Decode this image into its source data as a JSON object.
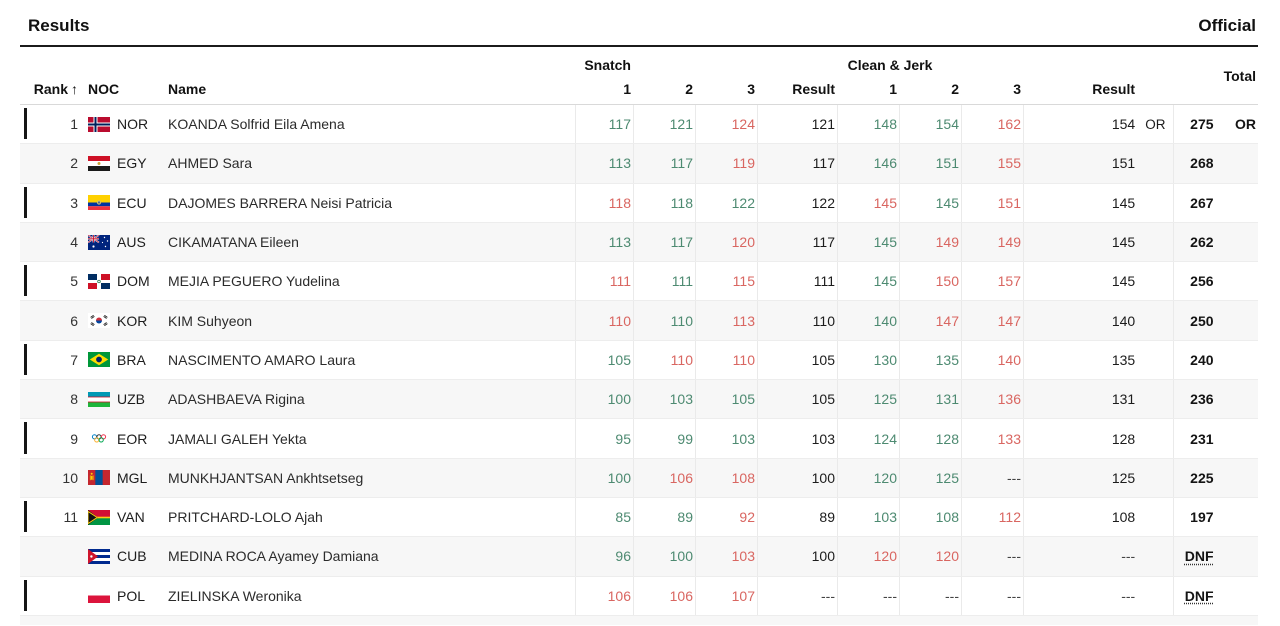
{
  "page": {
    "title": "Results",
    "status": "Official"
  },
  "colors": {
    "good": "#4d8a71",
    "fail": "#d96661",
    "neutral": "#1c1c1c",
    "dash": "#444444"
  },
  "table": {
    "headers": {
      "rank": "Rank",
      "sort_arrow": "↑",
      "noc": "NOC",
      "name": "Name",
      "snatch": "Snatch",
      "clean_jerk": "Clean & Jerk",
      "total": "Total",
      "attempt1": "1",
      "attempt2": "2",
      "attempt3": "3",
      "result": "Result"
    },
    "rows": [
      {
        "rank": "1",
        "noc": "NOR",
        "name": "KOANDA Solfrid Eila Amena",
        "snatch": {
          "attempts": [
            {
              "v": "117",
              "ok": true
            },
            {
              "v": "121",
              "ok": true
            },
            {
              "v": "124",
              "ok": false
            }
          ],
          "result": "121"
        },
        "cj": {
          "attempts": [
            {
              "v": "148",
              "ok": true
            },
            {
              "v": "154",
              "ok": true
            },
            {
              "v": "162",
              "ok": false
            }
          ],
          "result": "154",
          "record": "OR"
        },
        "total": {
          "value": "275",
          "record": "OR",
          "dnf": false
        }
      },
      {
        "rank": "2",
        "noc": "EGY",
        "name": "AHMED Sara",
        "snatch": {
          "attempts": [
            {
              "v": "113",
              "ok": true
            },
            {
              "v": "117",
              "ok": true
            },
            {
              "v": "119",
              "ok": false
            }
          ],
          "result": "117"
        },
        "cj": {
          "attempts": [
            {
              "v": "146",
              "ok": true
            },
            {
              "v": "151",
              "ok": true
            },
            {
              "v": "155",
              "ok": false
            }
          ],
          "result": "151",
          "record": ""
        },
        "total": {
          "value": "268",
          "record": "",
          "dnf": false
        }
      },
      {
        "rank": "3",
        "noc": "ECU",
        "name": "DAJOMES BARRERA Neisi Patricia",
        "snatch": {
          "attempts": [
            {
              "v": "118",
              "ok": false
            },
            {
              "v": "118",
              "ok": true
            },
            {
              "v": "122",
              "ok": true
            }
          ],
          "result": "122"
        },
        "cj": {
          "attempts": [
            {
              "v": "145",
              "ok": false
            },
            {
              "v": "145",
              "ok": true
            },
            {
              "v": "151",
              "ok": false
            }
          ],
          "result": "145",
          "record": ""
        },
        "total": {
          "value": "267",
          "record": "",
          "dnf": false
        }
      },
      {
        "rank": "4",
        "noc": "AUS",
        "name": "CIKAMATANA Eileen",
        "snatch": {
          "attempts": [
            {
              "v": "113",
              "ok": true
            },
            {
              "v": "117",
              "ok": true
            },
            {
              "v": "120",
              "ok": false
            }
          ],
          "result": "117"
        },
        "cj": {
          "attempts": [
            {
              "v": "145",
              "ok": true
            },
            {
              "v": "149",
              "ok": false
            },
            {
              "v": "149",
              "ok": false
            }
          ],
          "result": "145",
          "record": ""
        },
        "total": {
          "value": "262",
          "record": "",
          "dnf": false
        }
      },
      {
        "rank": "5",
        "noc": "DOM",
        "name": "MEJIA PEGUERO Yudelina",
        "snatch": {
          "attempts": [
            {
              "v": "111",
              "ok": false
            },
            {
              "v": "111",
              "ok": true
            },
            {
              "v": "115",
              "ok": false
            }
          ],
          "result": "111"
        },
        "cj": {
          "attempts": [
            {
              "v": "145",
              "ok": true
            },
            {
              "v": "150",
              "ok": false
            },
            {
              "v": "157",
              "ok": false
            }
          ],
          "result": "145",
          "record": ""
        },
        "total": {
          "value": "256",
          "record": "",
          "dnf": false
        }
      },
      {
        "rank": "6",
        "noc": "KOR",
        "name": "KIM Suhyeon",
        "snatch": {
          "attempts": [
            {
              "v": "110",
              "ok": false
            },
            {
              "v": "110",
              "ok": true
            },
            {
              "v": "113",
              "ok": false
            }
          ],
          "result": "110"
        },
        "cj": {
          "attempts": [
            {
              "v": "140",
              "ok": true
            },
            {
              "v": "147",
              "ok": false
            },
            {
              "v": "147",
              "ok": false
            }
          ],
          "result": "140",
          "record": ""
        },
        "total": {
          "value": "250",
          "record": "",
          "dnf": false
        }
      },
      {
        "rank": "7",
        "noc": "BRA",
        "name": "NASCIMENTO AMARO Laura",
        "snatch": {
          "attempts": [
            {
              "v": "105",
              "ok": true
            },
            {
              "v": "110",
              "ok": false
            },
            {
              "v": "110",
              "ok": false
            }
          ],
          "result": "105"
        },
        "cj": {
          "attempts": [
            {
              "v": "130",
              "ok": true
            },
            {
              "v": "135",
              "ok": true
            },
            {
              "v": "140",
              "ok": false
            }
          ],
          "result": "135",
          "record": ""
        },
        "total": {
          "value": "240",
          "record": "",
          "dnf": false
        }
      },
      {
        "rank": "8",
        "noc": "UZB",
        "name": "ADASHBAEVA Rigina",
        "snatch": {
          "attempts": [
            {
              "v": "100",
              "ok": true
            },
            {
              "v": "103",
              "ok": true
            },
            {
              "v": "105",
              "ok": true
            }
          ],
          "result": "105"
        },
        "cj": {
          "attempts": [
            {
              "v": "125",
              "ok": true
            },
            {
              "v": "131",
              "ok": true
            },
            {
              "v": "136",
              "ok": false
            }
          ],
          "result": "131",
          "record": ""
        },
        "total": {
          "value": "236",
          "record": "",
          "dnf": false
        }
      },
      {
        "rank": "9",
        "noc": "EOR",
        "name": "JAMALI GALEH Yekta",
        "snatch": {
          "attempts": [
            {
              "v": "95",
              "ok": true
            },
            {
              "v": "99",
              "ok": true
            },
            {
              "v": "103",
              "ok": true
            }
          ],
          "result": "103"
        },
        "cj": {
          "attempts": [
            {
              "v": "124",
              "ok": true
            },
            {
              "v": "128",
              "ok": true
            },
            {
              "v": "133",
              "ok": false
            }
          ],
          "result": "128",
          "record": ""
        },
        "total": {
          "value": "231",
          "record": "",
          "dnf": false
        }
      },
      {
        "rank": "10",
        "noc": "MGL",
        "name": "MUNKHJANTSAN Ankhtsetseg",
        "snatch": {
          "attempts": [
            {
              "v": "100",
              "ok": true
            },
            {
              "v": "106",
              "ok": false
            },
            {
              "v": "108",
              "ok": false
            }
          ],
          "result": "100"
        },
        "cj": {
          "attempts": [
            {
              "v": "120",
              "ok": true
            },
            {
              "v": "125",
              "ok": true
            },
            {
              "v": "---"
            }
          ],
          "result": "125",
          "record": ""
        },
        "total": {
          "value": "225",
          "record": "",
          "dnf": false
        }
      },
      {
        "rank": "11",
        "noc": "VAN",
        "name": "PRITCHARD-LOLO Ajah",
        "snatch": {
          "attempts": [
            {
              "v": "85",
              "ok": true
            },
            {
              "v": "89",
              "ok": true
            },
            {
              "v": "92",
              "ok": false
            }
          ],
          "result": "89"
        },
        "cj": {
          "attempts": [
            {
              "v": "103",
              "ok": true
            },
            {
              "v": "108",
              "ok": true
            },
            {
              "v": "112",
              "ok": false
            }
          ],
          "result": "108",
          "record": ""
        },
        "total": {
          "value": "197",
          "record": "",
          "dnf": false
        }
      },
      {
        "rank": "",
        "noc": "CUB",
        "name": "MEDINA ROCA Ayamey Damiana",
        "snatch": {
          "attempts": [
            {
              "v": "96",
              "ok": true
            },
            {
              "v": "100",
              "ok": true
            },
            {
              "v": "103",
              "ok": false
            }
          ],
          "result": "100"
        },
        "cj": {
          "attempts": [
            {
              "v": "120",
              "ok": false
            },
            {
              "v": "120",
              "ok": false
            },
            {
              "v": "---"
            }
          ],
          "result": "---",
          "record": ""
        },
        "total": {
          "value": "DNF",
          "record": "",
          "dnf": true
        }
      },
      {
        "rank": "",
        "noc": "POL",
        "name": "ZIELINSKA Weronika",
        "snatch": {
          "attempts": [
            {
              "v": "106",
              "ok": false
            },
            {
              "v": "106",
              "ok": false
            },
            {
              "v": "107",
              "ok": false
            }
          ],
          "result": "---"
        },
        "cj": {
          "attempts": [
            {
              "v": "---"
            },
            {
              "v": "---"
            },
            {
              "v": "---"
            }
          ],
          "result": "---",
          "record": ""
        },
        "total": {
          "value": "DNF",
          "record": "",
          "dnf": true
        }
      }
    ]
  }
}
